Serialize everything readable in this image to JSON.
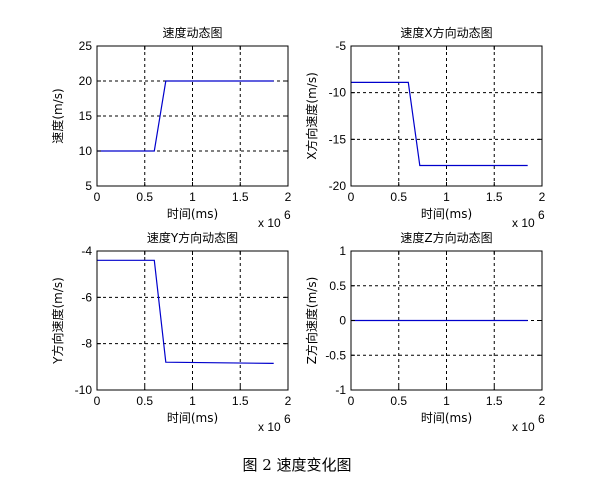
{
  "figure": {
    "caption": "图 2  速度变化图"
  },
  "chart_data": [
    {
      "type": "line",
      "title": "速度动态图",
      "xlabel": "时间(ms)",
      "ylabel": "速度(m/s)",
      "x_exponent": "x 10",
      "x_exponent_power": "6",
      "xlim": [
        0,
        2
      ],
      "ylim": [
        5,
        25
      ],
      "xticks": [
        "0",
        "0.5",
        "1",
        "1.5",
        "2"
      ],
      "yticks": [
        "5",
        "10",
        "15",
        "20",
        "25"
      ],
      "xtick_values": [
        0,
        0.5,
        1,
        1.5,
        2
      ],
      "ytick_values": [
        5,
        10,
        15,
        20,
        25
      ],
      "grid": true,
      "series": [
        {
          "color": "#0000cc",
          "x": [
            0,
            0.6,
            0.72,
            1.85
          ],
          "y": [
            10,
            10,
            20,
            20
          ]
        }
      ]
    },
    {
      "type": "line",
      "title": "速度X方向动态图",
      "xlabel": "时间(ms)",
      "ylabel": "X方向速度(m/s)",
      "x_exponent": "x 10",
      "x_exponent_power": "6",
      "xlim": [
        0,
        2
      ],
      "ylim": [
        -20,
        -5
      ],
      "xticks": [
        "0",
        "0.5",
        "1",
        "1.5",
        "2"
      ],
      "yticks": [
        "-20",
        "-15",
        "-10",
        "-5"
      ],
      "xtick_values": [
        0,
        0.5,
        1,
        1.5,
        2
      ],
      "ytick_values": [
        -20,
        -15,
        -10,
        -5
      ],
      "grid": true,
      "series": [
        {
          "color": "#0000cc",
          "x": [
            0,
            0.6,
            0.72,
            1.85
          ],
          "y": [
            -8.9,
            -8.9,
            -17.8,
            -17.8
          ]
        }
      ]
    },
    {
      "type": "line",
      "title": "速度Y方向动态图",
      "xlabel": "时间(ms)",
      "ylabel": "Y方向速度(m/s)",
      "x_exponent": "x 10",
      "x_exponent_power": "6",
      "xlim": [
        0,
        2
      ],
      "ylim": [
        -10,
        -4
      ],
      "xticks": [
        "0",
        "0.5",
        "1",
        "1.5",
        "2"
      ],
      "yticks": [
        "-10",
        "-8",
        "-6",
        "-4"
      ],
      "xtick_values": [
        0,
        0.5,
        1,
        1.5,
        2
      ],
      "ytick_values": [
        -10,
        -8,
        -6,
        -4
      ],
      "grid": true,
      "series": [
        {
          "color": "#0000cc",
          "x": [
            0,
            0.6,
            0.72,
            1.85
          ],
          "y": [
            -4.4,
            -4.4,
            -8.8,
            -8.85
          ]
        }
      ]
    },
    {
      "type": "line",
      "title": "速度Z方向动态图",
      "xlabel": "时间(ms)",
      "ylabel": "Z方向速度(m/s)",
      "x_exponent": "x 10",
      "x_exponent_power": "6",
      "xlim": [
        0,
        2
      ],
      "ylim": [
        -1,
        1
      ],
      "xticks": [
        "0",
        "0.5",
        "1",
        "1.5",
        "2"
      ],
      "yticks": [
        "-1",
        "-0.5",
        "0",
        "0.5",
        "1"
      ],
      "xtick_values": [
        0,
        0.5,
        1,
        1.5,
        2
      ],
      "ytick_values": [
        -1,
        -0.5,
        0,
        0.5,
        1
      ],
      "grid": true,
      "series": [
        {
          "color": "#0000cc",
          "x": [
            0,
            1.85
          ],
          "y": [
            0,
            0
          ]
        }
      ]
    }
  ]
}
